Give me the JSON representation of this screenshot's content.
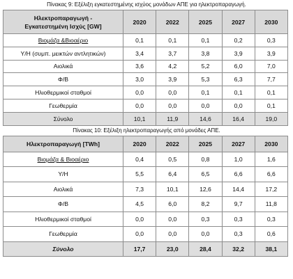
{
  "table1": {
    "caption": "Πίνακας 9: Εξέλιξη εγκατεστημένης ισχύος μονάδων ΑΠΕ για ηλεκτροπαραγωγή.",
    "header_line1": "Ηλεκτροπαραγωγή -",
    "header_line2": "Εγκατεστημένη Ισχύς [GW]",
    "years": [
      "2020",
      "2022",
      "2025",
      "2027",
      "2030"
    ],
    "rows": [
      {
        "label": "Βιομάζα &Βιοαέριο",
        "values": [
          "0,1",
          "0,1",
          "0,1",
          "0,2",
          "0,3"
        ]
      },
      {
        "label": "Υ/Η (συμπ. μεικτών αντλητικών)",
        "values": [
          "3,4",
          "3,7",
          "3,8",
          "3,9",
          "3,9"
        ]
      },
      {
        "label": "Αιολικά",
        "values": [
          "3,6",
          "4,2",
          "5,2",
          "6,0",
          "7,0"
        ]
      },
      {
        "label": "Φ/Β",
        "values": [
          "3,0",
          "3,9",
          "5,3",
          "6,3",
          "7,7"
        ]
      },
      {
        "label": "Ηλιοθερμικοί σταθμοί",
        "values": [
          "0,0",
          "0,0",
          "0,1",
          "0,1",
          "0,1"
        ]
      },
      {
        "label": "Γεωθερμία",
        "values": [
          "0,0",
          "0,0",
          "0,0",
          "0,0",
          "0,1"
        ]
      }
    ],
    "total": {
      "label": "Σύνολο",
      "values": [
        "10,1",
        "11,9",
        "14,6",
        "16,4",
        "19,0"
      ]
    }
  },
  "table2": {
    "caption": "Πίνακας 10: Εξέλιξη ηλεκτροπαραγωγής από μονάδες ΑΠΕ.",
    "header": "Ηλεκτροπαραγωγή [TWh]",
    "years": [
      "2020",
      "2022",
      "2025",
      "2027",
      "2030"
    ],
    "rows": [
      {
        "label": "Βιομάζα & Βιοαέριο",
        "values": [
          "0,4",
          "0,5",
          "0,8",
          "1,0",
          "1,6"
        ]
      },
      {
        "label": "Υ/Η",
        "values": [
          "5,5",
          "6,4",
          "6,5",
          "6,6",
          "6,6"
        ]
      },
      {
        "label": "Αιολικά",
        "values": [
          "7,3",
          "10,1",
          "12,6",
          "14,4",
          "17,2"
        ]
      },
      {
        "label": "Φ/Β",
        "values": [
          "4,5",
          "6,0",
          "8,2",
          "9,7",
          "11,8"
        ]
      },
      {
        "label": "Ηλιοθερμικοί σταθμοί",
        "values": [
          "0,0",
          "0,0",
          "0,3",
          "0,3",
          "0,3"
        ]
      },
      {
        "label": "Γεωθερμία",
        "values": [
          "0,0",
          "0,0",
          "0,0",
          "0,3",
          "0,6"
        ]
      }
    ],
    "total": {
      "label": "Σύνολο",
      "values": [
        "17,7",
        "23,0",
        "28,4",
        "32,2",
        "38,1"
      ]
    }
  }
}
